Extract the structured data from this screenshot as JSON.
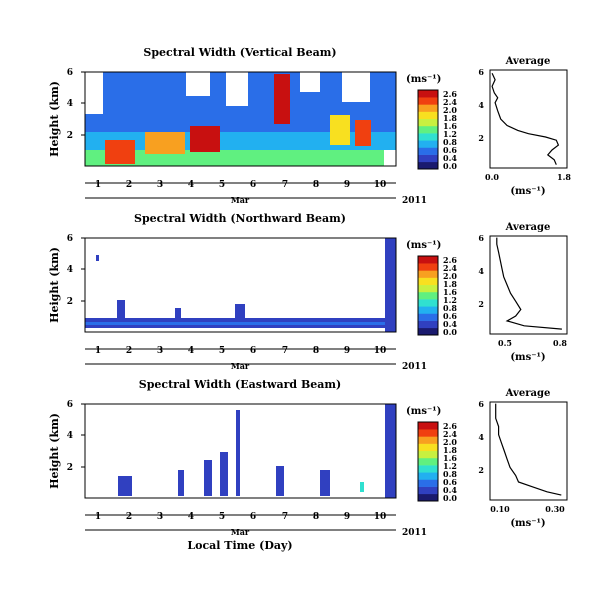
{
  "colorbar": {
    "unit_label": "(ms⁻¹)",
    "ticks": [
      "2.6",
      "2.4",
      "2.0",
      "1.8",
      "1.6",
      "1.2",
      "0.8",
      "0.6",
      "0.4",
      "0.0"
    ],
    "colors": [
      "#1a1a6e",
      "#3040c0",
      "#2a6ee8",
      "#22b0f0",
      "#30e0d0",
      "#60f080",
      "#c8f040",
      "#f8e020",
      "#f8a020",
      "#f04010",
      "#c81010"
    ]
  },
  "chart_data": [
    {
      "type": "heatmap",
      "title": "Spectral Width (Vertical Beam)",
      "ylabel": "Height (km)",
      "yticks": [
        "6",
        "4",
        "2"
      ],
      "ylim": [
        0,
        6
      ],
      "x_ticks": [
        "1",
        "2",
        "3",
        "4",
        "5",
        "6",
        "7",
        "8",
        "9",
        "10"
      ],
      "month_label": "Mar",
      "year_label": "2011",
      "value_range": [
        0.0,
        2.6
      ],
      "avg_profile": {
        "title": "Average",
        "xlabel": "(ms⁻¹)",
        "xticks": [
          "0.0",
          "1.8"
        ],
        "xlim": [
          0.0,
          1.8
        ],
        "yticks": [
          "6",
          "4",
          "2"
        ],
        "points": [
          [
            1.55,
            0.2
          ],
          [
            1.5,
            0.5
          ],
          [
            1.35,
            0.8
          ],
          [
            1.45,
            1.1
          ],
          [
            1.6,
            1.4
          ],
          [
            1.55,
            1.7
          ],
          [
            1.3,
            1.9
          ],
          [
            0.9,
            2.1
          ],
          [
            0.65,
            2.3
          ],
          [
            0.4,
            2.6
          ],
          [
            0.25,
            3.0
          ],
          [
            0.18,
            3.5
          ],
          [
            0.12,
            4.0
          ],
          [
            0.18,
            4.3
          ],
          [
            0.1,
            4.6
          ],
          [
            0.05,
            5.0
          ],
          [
            0.12,
            5.4
          ],
          [
            0.05,
            5.8
          ]
        ]
      }
    },
    {
      "type": "heatmap",
      "title": "Spectral Width (Northward Beam)",
      "ylabel": "Height (km)",
      "yticks": [
        "6",
        "4",
        "2"
      ],
      "ylim": [
        0,
        6
      ],
      "x_ticks": [
        "1",
        "2",
        "3",
        "4",
        "5",
        "6",
        "7",
        "8",
        "9",
        "10"
      ],
      "month_label": "Mar",
      "year_label": "2011",
      "value_range": [
        0.0,
        2.6
      ],
      "avg_profile": {
        "title": "Average",
        "xlabel": "(ms⁻¹)",
        "xticks": [
          "0.5",
          "0.8"
        ],
        "xlim": [
          0.4,
          0.85
        ],
        "yticks": [
          "6",
          "4",
          "2"
        ],
        "points": [
          [
            0.82,
            0.3
          ],
          [
            0.6,
            0.5
          ],
          [
            0.5,
            0.8
          ],
          [
            0.55,
            1.1
          ],
          [
            0.58,
            1.5
          ],
          [
            0.55,
            2.0
          ],
          [
            0.52,
            2.5
          ],
          [
            0.5,
            3.0
          ],
          [
            0.48,
            3.5
          ],
          [
            0.47,
            4.0
          ],
          [
            0.46,
            4.5
          ],
          [
            0.45,
            5.0
          ],
          [
            0.44,
            5.5
          ],
          [
            0.44,
            5.9
          ]
        ]
      }
    },
    {
      "type": "heatmap",
      "title": "Spectral Width (Eastward Beam)",
      "ylabel": "Height (km)",
      "yticks": [
        "6",
        "4",
        "2"
      ],
      "ylim": [
        0,
        6
      ],
      "x_ticks": [
        "1",
        "2",
        "3",
        "4",
        "5",
        "6",
        "7",
        "8",
        "9",
        "10"
      ],
      "month_label": "Mar",
      "year_label": "2011",
      "xlabel": "Local Time (Day)",
      "value_range": [
        0.0,
        2.6
      ],
      "avg_profile": {
        "title": "Average",
        "xlabel": "(ms⁻¹)",
        "xticks": [
          "0.10",
          "0.30"
        ],
        "xlim": [
          0.05,
          0.32
        ],
        "yticks": [
          "6",
          "4",
          "2"
        ],
        "points": [
          [
            0.3,
            0.3
          ],
          [
            0.25,
            0.5
          ],
          [
            0.2,
            0.8
          ],
          [
            0.15,
            1.1
          ],
          [
            0.14,
            1.5
          ],
          [
            0.12,
            2.0
          ],
          [
            0.11,
            2.5
          ],
          [
            0.1,
            3.0
          ],
          [
            0.09,
            3.5
          ],
          [
            0.08,
            4.0
          ],
          [
            0.08,
            4.5
          ],
          [
            0.07,
            5.0
          ],
          [
            0.07,
            5.5
          ],
          [
            0.07,
            5.9
          ]
        ]
      }
    }
  ]
}
